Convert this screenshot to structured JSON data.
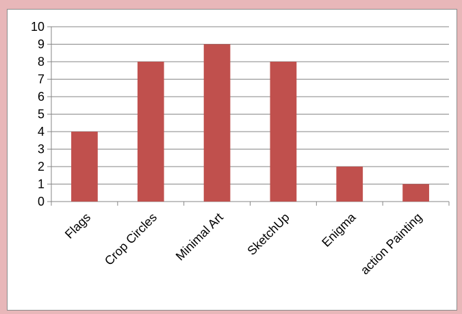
{
  "chart_data": {
    "type": "bar",
    "categories": [
      "Flags",
      "Crop Circles",
      "Minimal Art",
      "SketchUp",
      "Enigma",
      "action Painting"
    ],
    "values": [
      4,
      8,
      9,
      8,
      2,
      1
    ],
    "ylim": [
      0,
      10
    ],
    "yticks": [
      0,
      1,
      2,
      3,
      4,
      5,
      6,
      7,
      8,
      9,
      10
    ],
    "grid": true,
    "legend": "none",
    "title": "",
    "xlabel": "",
    "ylabel": "",
    "colors": {
      "bar": "#c0504d",
      "grid": "#868686",
      "axis": "#868686"
    }
  }
}
